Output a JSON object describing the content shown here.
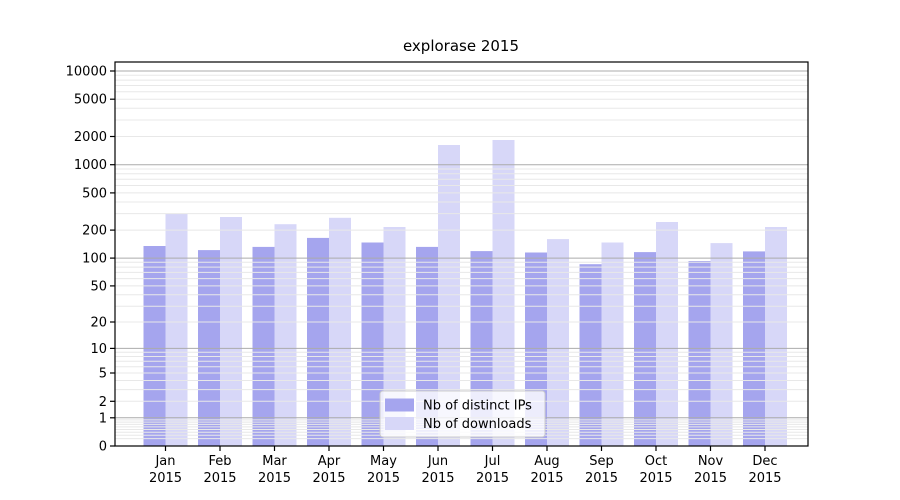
{
  "chart_data": {
    "type": "bar",
    "title": "explorase 2015",
    "categories": [
      "Jan",
      "Feb",
      "Mar",
      "Apr",
      "May",
      "Jun",
      "Jul",
      "Aug",
      "Sep",
      "Oct",
      "Nov",
      "Dec"
    ],
    "category_sublabel": "2015",
    "series": [
      {
        "name": "Nb of distinct IPs",
        "color": "#a5a5ee",
        "values": [
          135,
          122,
          132,
          165,
          147,
          132,
          119,
          115,
          86,
          116,
          93,
          118
        ]
      },
      {
        "name": "Nb of downloads",
        "color": "#d7d7f8",
        "values": [
          297,
          276,
          231,
          271,
          216,
          1625,
          1836,
          160,
          147,
          244,
          145,
          216
        ]
      }
    ],
    "y_scale": "log1p",
    "y_ticks": [
      0,
      1,
      2,
      5,
      10,
      20,
      50,
      100,
      200,
      500,
      1000,
      2000,
      5000,
      10000
    ],
    "y_max": 10000,
    "grid": true,
    "grid_major_color": "#ababab",
    "grid_minor_color": "#e8e8e8",
    "legend_position": "lower center",
    "xlabel": "",
    "ylabel": ""
  }
}
